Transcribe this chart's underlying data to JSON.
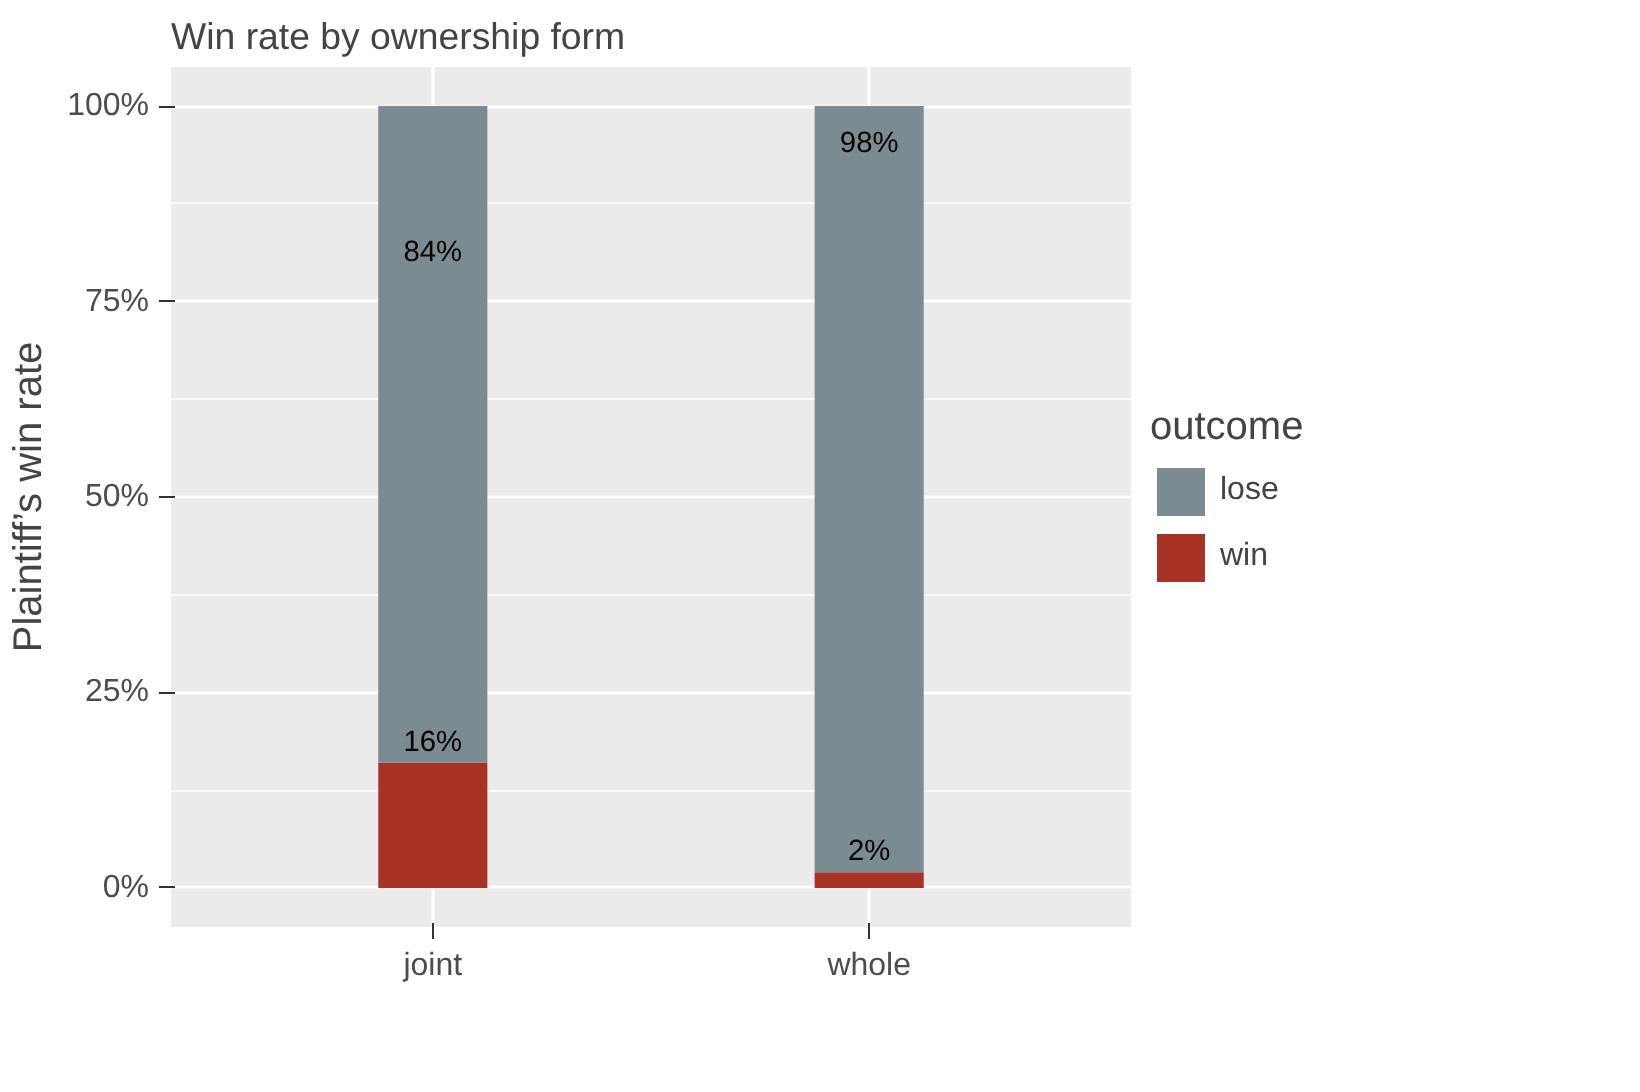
{
  "chart_data": {
    "type": "bar",
    "title": "Win rate by ownership form",
    "ylabel": "Plaintiff’s win rate",
    "legend_title": "outcome",
    "categories": [
      "joint",
      "whole"
    ],
    "stacked": true,
    "series": [
      {
        "name": "win",
        "color": "#a93226",
        "values": [
          16,
          2
        ],
        "value_labels": [
          "16%",
          "2%"
        ]
      },
      {
        "name": "lose",
        "color": "#7a8b91",
        "values": [
          84,
          98
        ],
        "value_labels": [
          "84%",
          "98%"
        ]
      }
    ],
    "ylim": [
      -5,
      105
    ],
    "yticks": [
      {
        "value": 0,
        "label": "0%"
      },
      {
        "value": 25,
        "label": "25%"
      },
      {
        "value": 50,
        "label": "50%"
      },
      {
        "value": 75,
        "label": "75%"
      },
      {
        "value": 100,
        "label": "100%"
      }
    ],
    "grid": true,
    "legend": "right"
  }
}
